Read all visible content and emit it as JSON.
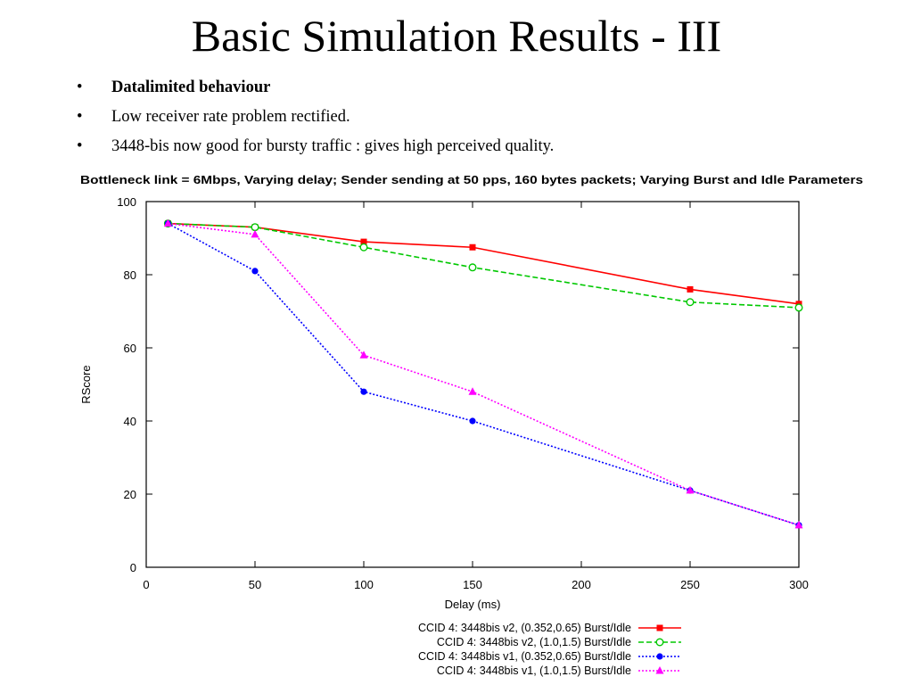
{
  "slide": {
    "title": "Basic Simulation Results - III",
    "bullet_symbol": "•",
    "bullets": [
      "Datalimited behaviour",
      "Low receiver rate problem rectified.",
      "3448-bis now good for bursty traffic : gives high perceived quality."
    ]
  },
  "chart_data": {
    "type": "line",
    "title": "Bottleneck link = 6Mbps, Varying delay; Sender sending at 50 pps, 160 bytes packets; Varying Burst and Idle Parameters",
    "xlabel": "Delay (ms)",
    "ylabel": "RScore",
    "xlim": [
      0,
      300
    ],
    "ylim": [
      0,
      100
    ],
    "xticks": [
      0,
      50,
      100,
      150,
      200,
      250,
      300
    ],
    "yticks": [
      0,
      20,
      40,
      60,
      80,
      100
    ],
    "grid": false,
    "legend_position": "bottom-right, below plot",
    "series": [
      {
        "name": "CCID 4: 3448bis v2, (0.352,0.65) Burst/Idle",
        "color": "#ff0000",
        "dash": "solid",
        "marker": "square",
        "x": [
          10,
          50,
          100,
          150,
          250,
          300
        ],
        "y": [
          94,
          93,
          89,
          87.5,
          76,
          72
        ]
      },
      {
        "name": "CCID 4: 3448bis v2, (1.0,1.5) Burst/Idle",
        "color": "#00c800",
        "dash": "dashed",
        "marker": "circle-open",
        "x": [
          10,
          50,
          100,
          150,
          250,
          300
        ],
        "y": [
          94,
          93,
          87.5,
          82,
          72.5,
          71
        ]
      },
      {
        "name": "CCID 4: 3448bis v1, (0.352,0.65) Burst/Idle",
        "color": "#0000ff",
        "dash": "dotted",
        "marker": "circle",
        "x": [
          10,
          50,
          100,
          150,
          250,
          300
        ],
        "y": [
          94,
          81,
          48,
          40,
          21,
          11.5
        ]
      },
      {
        "name": "CCID 4: 3448bis v1, (1.0,1.5) Burst/Idle",
        "color": "#ff00ff",
        "dash": "dotted",
        "marker": "triangle",
        "x": [
          10,
          50,
          100,
          150,
          250,
          300
        ],
        "y": [
          94,
          91,
          58,
          48,
          21,
          11.5
        ]
      }
    ]
  }
}
